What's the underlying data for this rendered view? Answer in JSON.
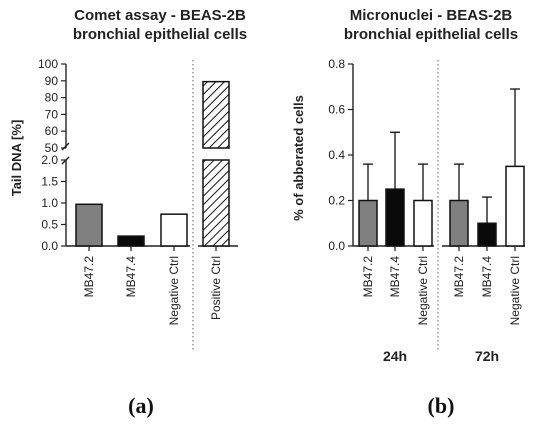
{
  "chart_data": [
    {
      "type": "bar",
      "title": "Comet assay - BEAS-2B\nbronchial epithelial cells",
      "ylabel": "Tail DNA [%]",
      "categories": [
        "MB47.2",
        "MB47.4",
        "Negative Ctrl",
        "Positive Ctrl"
      ],
      "values": [
        0.97,
        0.23,
        0.74,
        89.5
      ],
      "fills": [
        "gray",
        "black",
        "white",
        "hatched"
      ],
      "broken_axis": true,
      "ylim_lower": [
        0,
        2
      ],
      "ylim_upper": [
        50,
        100
      ],
      "yticks_lower": [
        "0.0",
        "0.5",
        "1.0",
        "1.5",
        "2.0"
      ],
      "yticks_upper": [
        "50",
        "60",
        "70",
        "80",
        "90",
        "100"
      ],
      "panel_label": "(a)"
    },
    {
      "type": "bar",
      "title": "Micronuclei - BEAS-2B\nbronchial epithelial cells",
      "ylabel": "% of abberated cells",
      "groups": [
        "24h",
        "72h"
      ],
      "categories": [
        "MB47.2",
        "MB47.4",
        "Negative Ctrl",
        "MB47.2",
        "MB47.4",
        "Negative Ctrl"
      ],
      "values": [
        0.2,
        0.25,
        0.2,
        0.2,
        0.1,
        0.35
      ],
      "errors": [
        0.16,
        0.25,
        0.16,
        0.16,
        0.115,
        0.34
      ],
      "fills": [
        "gray",
        "black",
        "white",
        "gray",
        "black",
        "white"
      ],
      "ylim": [
        0,
        0.8
      ],
      "yticks": [
        "0.0",
        "0.2",
        "0.4",
        "0.6",
        "0.8"
      ],
      "panel_label": "(b)"
    }
  ],
  "colors": {
    "gray": "#808080",
    "black": "#0a0a0a",
    "white": "#ffffff",
    "hatched": "#111111"
  }
}
